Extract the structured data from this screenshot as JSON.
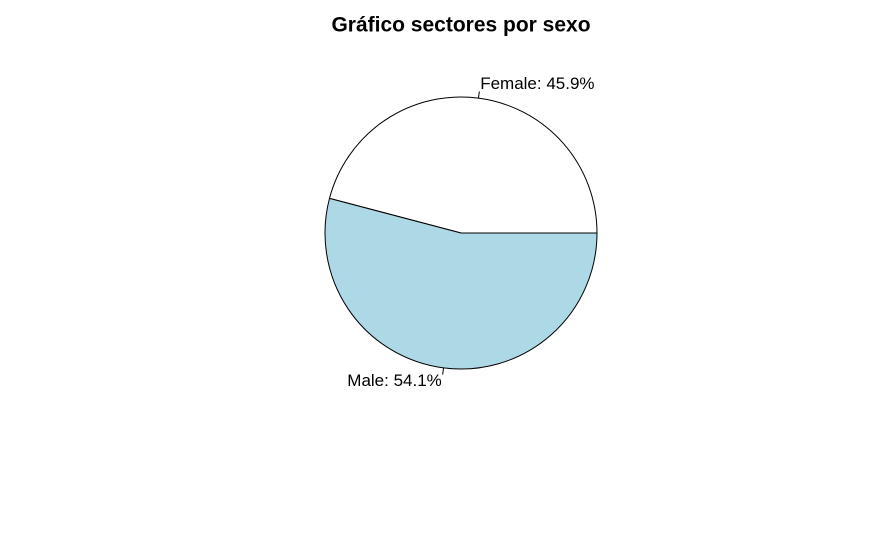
{
  "chart_data": {
    "type": "pie",
    "title": "Gráfico sectores por sexo",
    "values": [
      45.9,
      54.1
    ],
    "value_labels": [
      "Female: 45.9%",
      "Male: 54.1%"
    ],
    "colors": [
      "#ffffff",
      "#add8e6"
    ]
  }
}
